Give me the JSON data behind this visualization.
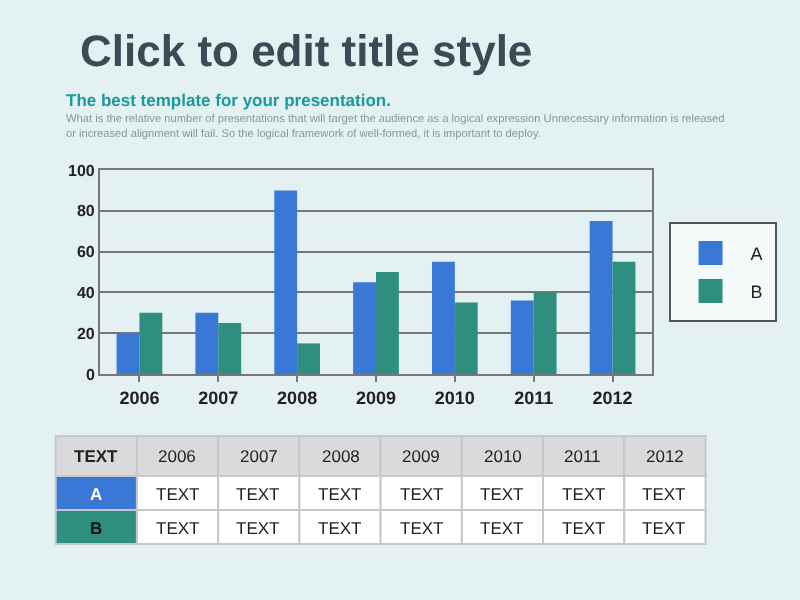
{
  "chart_data": {
    "type": "bar",
    "title": "Click to edit title style",
    "subtitle": "The best template for your presentation.",
    "categories": [
      "2006",
      "2007",
      "2008",
      "2009",
      "2010",
      "2011",
      "2012"
    ],
    "series": [
      {
        "name": "A",
        "color": "#3a78d8",
        "values": [
          20,
          30,
          90,
          45,
          55,
          36,
          75
        ]
      },
      {
        "name": "B",
        "color": "#2e8f80",
        "values": [
          30,
          25,
          15,
          50,
          35,
          40,
          55
        ]
      }
    ],
    "ylim": [
      0,
      100
    ],
    "yticks": [
      0,
      20,
      40,
      60,
      80,
      100
    ],
    "grid": "y",
    "legend": "right",
    "annotations": [
      "What is the relative number of presentations that will target the audience as a logical expression Unnecessary information is released or increased alignment will fail. So the logical framework of well-formed, it is important to deploy.",
      "TEXT",
      "TEXT",
      "TEXT",
      "TEXT",
      "TEXT",
      "TEXT",
      "TEXT",
      "TEXT",
      "TEXT",
      "TEXT",
      "TEXT",
      "TEXT",
      "TEXT",
      "TEXT",
      "TEXT"
    ]
  }
}
